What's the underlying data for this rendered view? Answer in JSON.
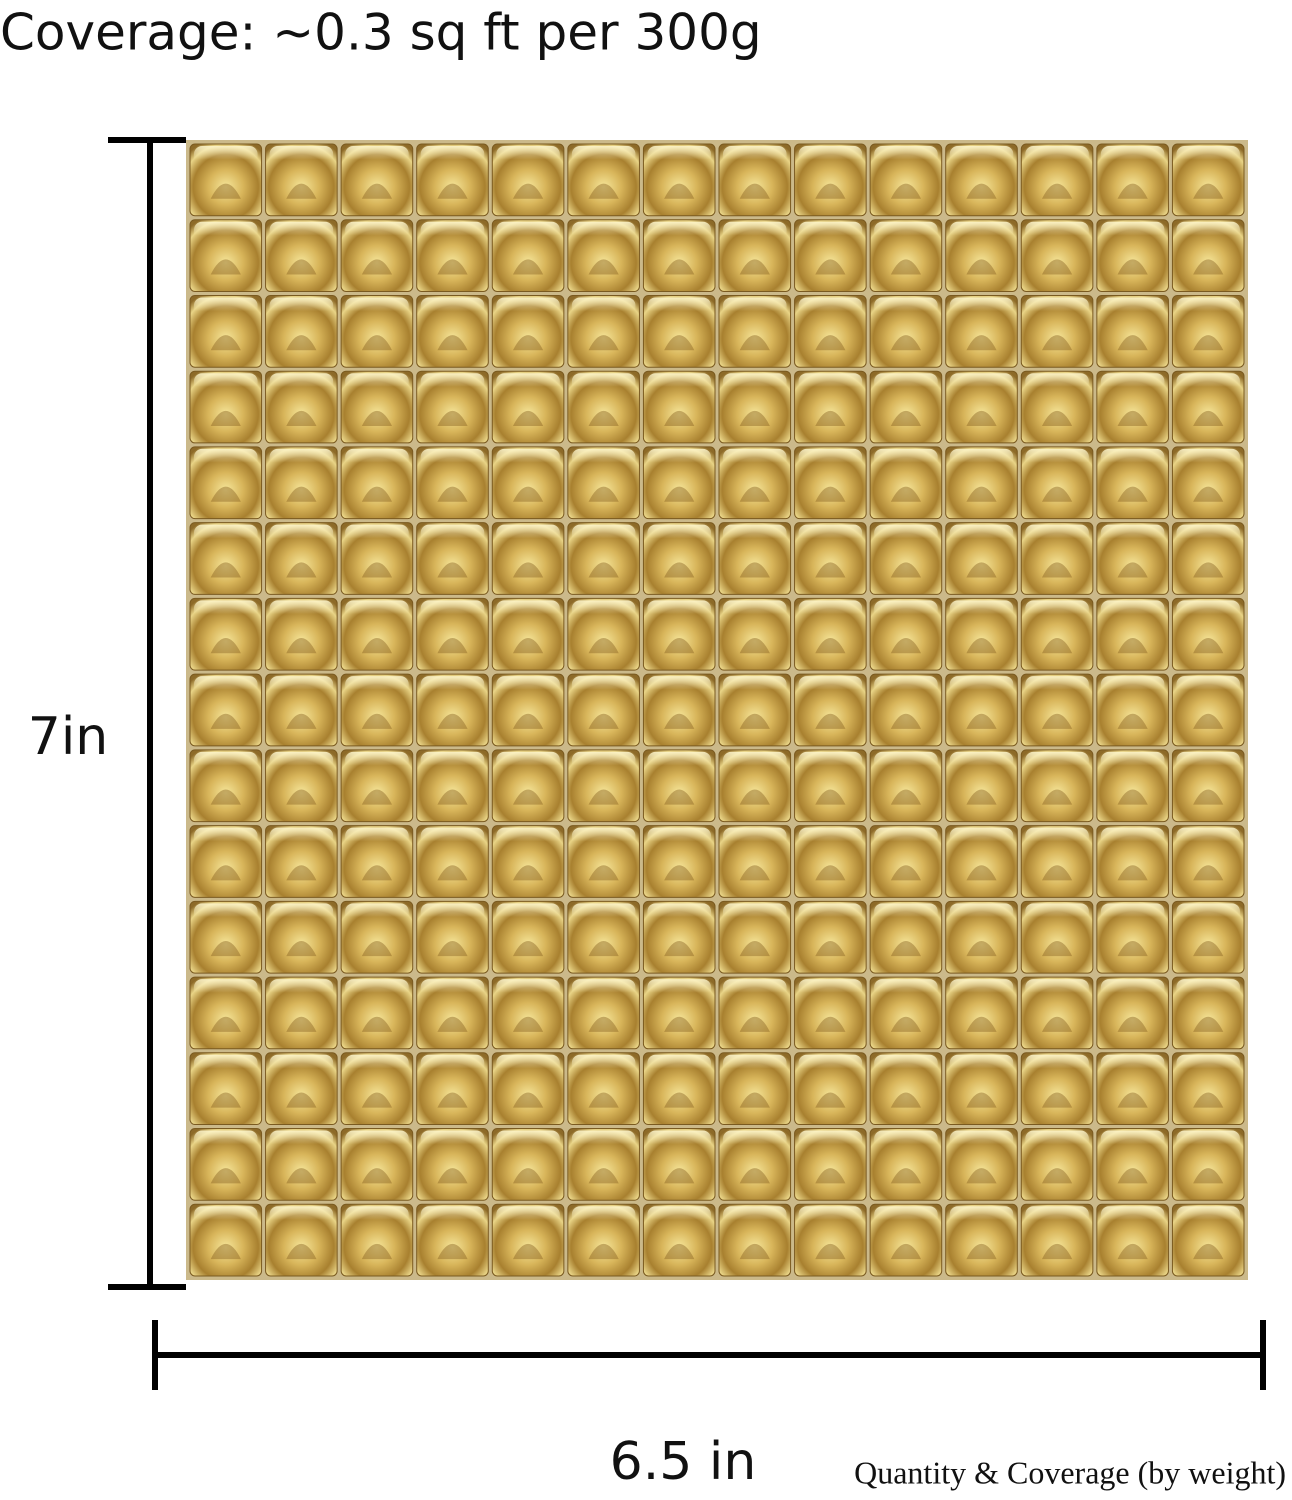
{
  "header": {
    "title": "Coverage: ~0.3 sq ft per 300g"
  },
  "dimensions": {
    "height": "7in",
    "width": "6.5 in"
  },
  "caption": "Quantity & Coverage (by weight)"
}
